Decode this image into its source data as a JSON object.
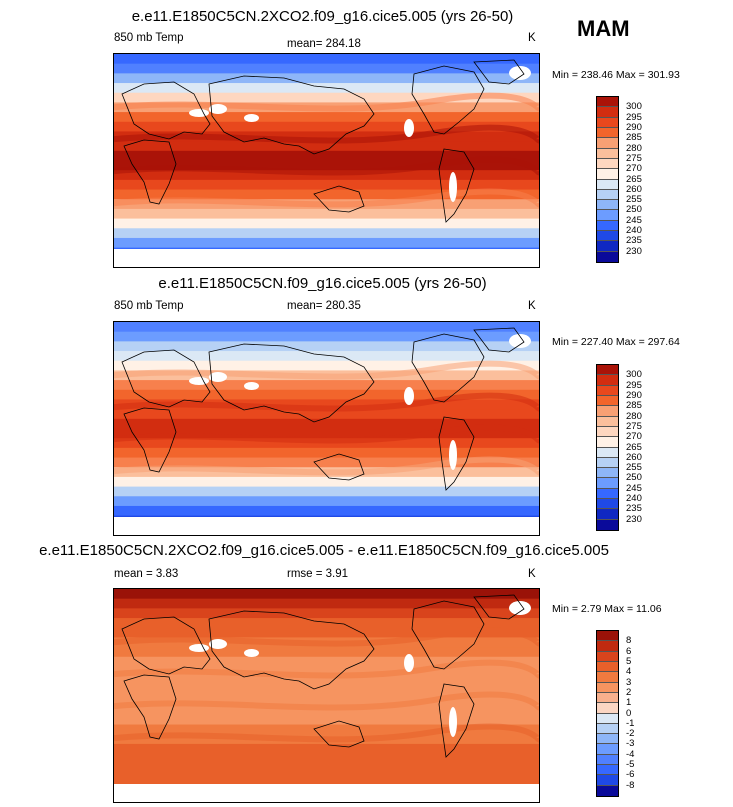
{
  "season_label": "MAM",
  "colors": {
    "abs_palette": [
      "#0a0a9a",
      "#0f28c2",
      "#1f49e6",
      "#3668ff",
      "#5080ff",
      "#6c9cff",
      "#8eb6f8",
      "#b6d1f5",
      "#dbe8f5",
      "#fff1e6",
      "#fed7c0",
      "#fbbf9c",
      "#f8a074",
      "#f7804d",
      "#f2652c",
      "#e8481d",
      "#d22d10",
      "#aa1308"
    ],
    "diff_palette": [
      "#0a0a9a",
      "#1f49e6",
      "#3668ff",
      "#5080ff",
      "#6c9cff",
      "#8eb6f8",
      "#b6d1f5",
      "#dbe8f5",
      "#fbd6c3",
      "#f8b08d",
      "#f69460",
      "#f07a3f",
      "#e8602a",
      "#d9441c",
      "#c02a10",
      "#9a1208"
    ]
  },
  "chart_data": [
    {
      "type": "heatmap",
      "title": "e.e11.E1850C5CN.2XCO2.f09_g16.cice5.005 (yrs 26-50)",
      "left_label": "850 mb Temp",
      "center_label": "mean= 284.18",
      "units": "K",
      "min_max": "Min = 238.46 Max = 301.93",
      "levels": [
        "300",
        "295",
        "290",
        "285",
        "280",
        "275",
        "270",
        "265",
        "260",
        "255",
        "250",
        "245",
        "240",
        "235",
        "230"
      ],
      "profile": [
        3,
        4,
        6,
        8,
        10,
        12,
        14,
        15,
        16,
        16,
        17,
        17,
        16,
        15,
        14,
        12,
        11,
        9,
        7,
        5,
        3,
        1
      ]
    },
    {
      "type": "heatmap",
      "title": "e.e11.E1850C5CN.f09_g16.cice5.005 (yrs 26-50)",
      "left_label": "850 mb Temp",
      "center_label": "mean= 280.35",
      "units": "K",
      "min_max": "Min = 227.40 Max = 297.64",
      "levels": [
        "300",
        "295",
        "290",
        "285",
        "280",
        "275",
        "270",
        "265",
        "260",
        "255",
        "250",
        "245",
        "240",
        "235",
        "230"
      ],
      "profile": [
        4,
        5,
        7,
        8,
        9,
        11,
        13,
        14,
        15,
        15,
        16,
        16,
        15,
        14,
        13,
        11,
        9,
        7,
        5,
        3,
        2,
        1
      ]
    },
    {
      "type": "heatmap",
      "title": "e.e11.E1850C5CN.2XCO2.f09_g16.cice5.005 - e.e11.E1850C5CN.f09_g16.cice5.005",
      "left_label": "mean =  3.83",
      "center_label": "rmse =  3.91",
      "units": "K",
      "min_max": "Min =  2.79 Max =  11.06",
      "levels": [
        "8",
        "6",
        "5",
        "4",
        "3",
        "2",
        "1",
        "0",
        "-1",
        "-2",
        "-3",
        "-4",
        "-5",
        "-6",
        "-8"
      ],
      "profile": [
        15,
        14,
        13,
        12,
        12,
        11,
        11,
        10,
        10,
        10,
        10,
        10,
        10,
        10,
        11,
        11,
        12,
        12,
        12,
        12,
        12,
        12
      ]
    }
  ]
}
